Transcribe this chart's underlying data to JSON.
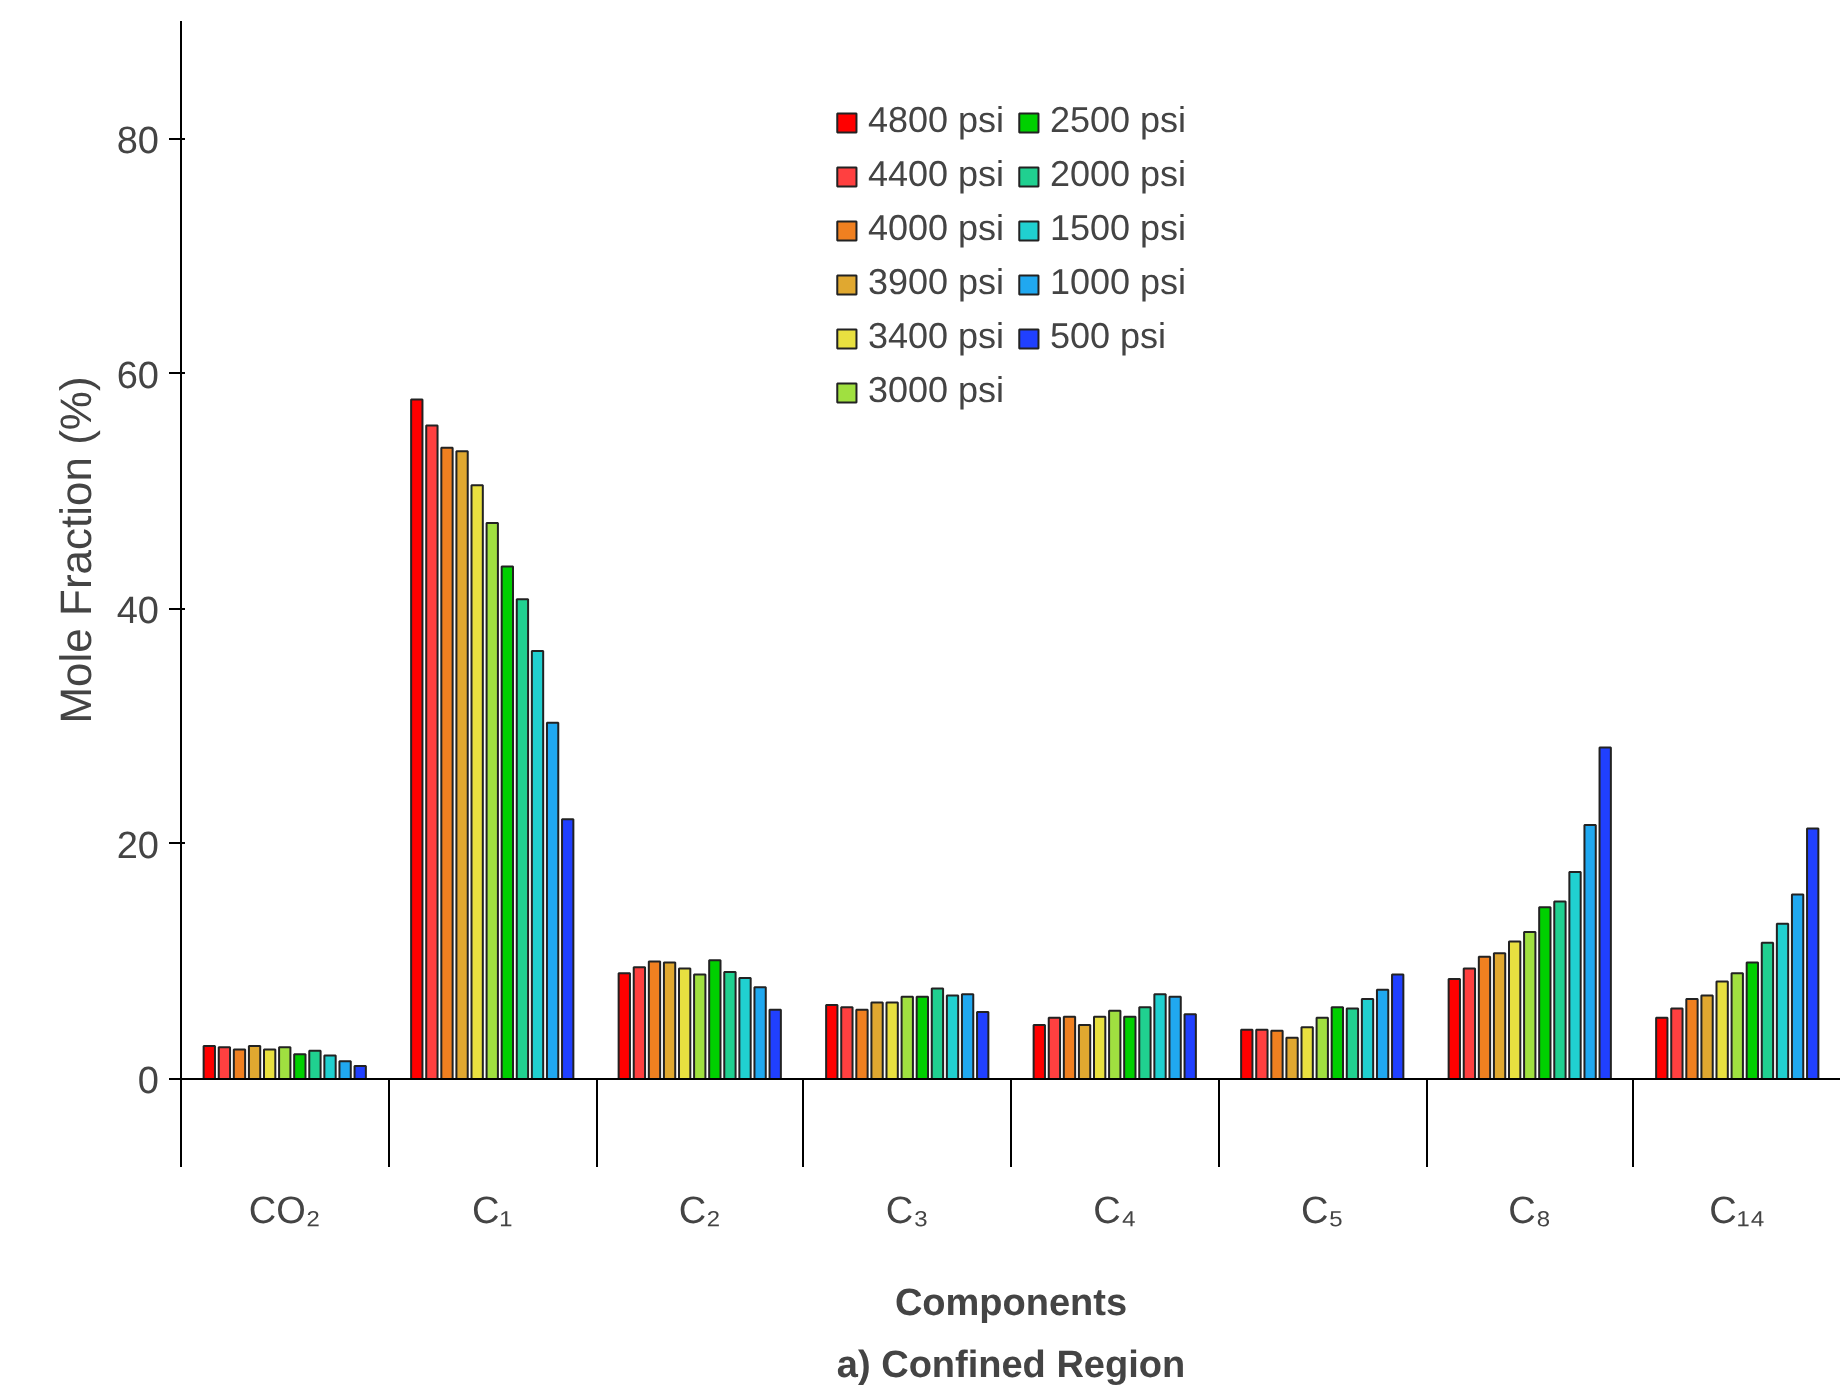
{
  "chart_data": {
    "type": "bar",
    "xlabel": "Components",
    "ylabel": "Mole Fraction (%)",
    "annotations": [
      "a) Confined Region"
    ],
    "categories": [
      "CO₂",
      "C₁",
      "C₂",
      "C₃",
      "C₄",
      "C₅",
      "C₈",
      "C₁₄"
    ],
    "ylim": [
      0,
      90
    ],
    "yticks": [
      0,
      20,
      40,
      60,
      80
    ],
    "grid": false,
    "legend": "top",
    "series": [
      {
        "name": "4800 psi",
        "color": "#ff0000",
        "values": [
          2.8,
          57.8,
          9.0,
          6.3,
          4.6,
          4.2,
          8.5,
          5.2
        ]
      },
      {
        "name": "4400 psi",
        "color": "#ff4040",
        "values": [
          2.7,
          55.6,
          9.5,
          6.1,
          5.2,
          4.2,
          9.4,
          6.0
        ]
      },
      {
        "name": "4000 psi",
        "color": "#f08020",
        "values": [
          2.5,
          53.7,
          10.0,
          5.9,
          5.3,
          4.1,
          10.4,
          6.8
        ]
      },
      {
        "name": "3900 psi",
        "color": "#e0a830",
        "values": [
          2.8,
          53.4,
          9.9,
          6.5,
          4.6,
          3.5,
          10.7,
          7.1
        ]
      },
      {
        "name": "3400 psi",
        "color": "#e8e040",
        "values": [
          2.5,
          50.5,
          9.4,
          6.5,
          5.3,
          4.4,
          11.7,
          8.3
        ]
      },
      {
        "name": "3000 psi",
        "color": "#a0e040",
        "values": [
          2.7,
          47.3,
          8.9,
          7.0,
          5.8,
          5.2,
          12.5,
          9.0
        ]
      },
      {
        "name": "2500 psi",
        "color": "#00d000",
        "values": [
          2.1,
          43.6,
          10.1,
          7.0,
          5.3,
          6.1,
          14.6,
          9.9
        ]
      },
      {
        "name": "2000 psi",
        "color": "#20d090",
        "values": [
          2.4,
          40.8,
          9.1,
          7.7,
          6.1,
          6.0,
          15.1,
          11.6
        ]
      },
      {
        "name": "1500 psi",
        "color": "#20d0d0",
        "values": [
          2.0,
          36.4,
          8.6,
          7.1,
          7.2,
          6.8,
          17.6,
          13.2
        ]
      },
      {
        "name": "1000 psi",
        "color": "#20a8f0",
        "values": [
          1.5,
          30.3,
          7.8,
          7.2,
          7.0,
          7.6,
          21.6,
          15.7
        ]
      },
      {
        "name": "500 psi",
        "color": "#2040ff",
        "values": [
          1.1,
          22.1,
          5.9,
          5.7,
          5.5,
          8.9,
          28.2,
          21.3
        ]
      }
    ]
  }
}
